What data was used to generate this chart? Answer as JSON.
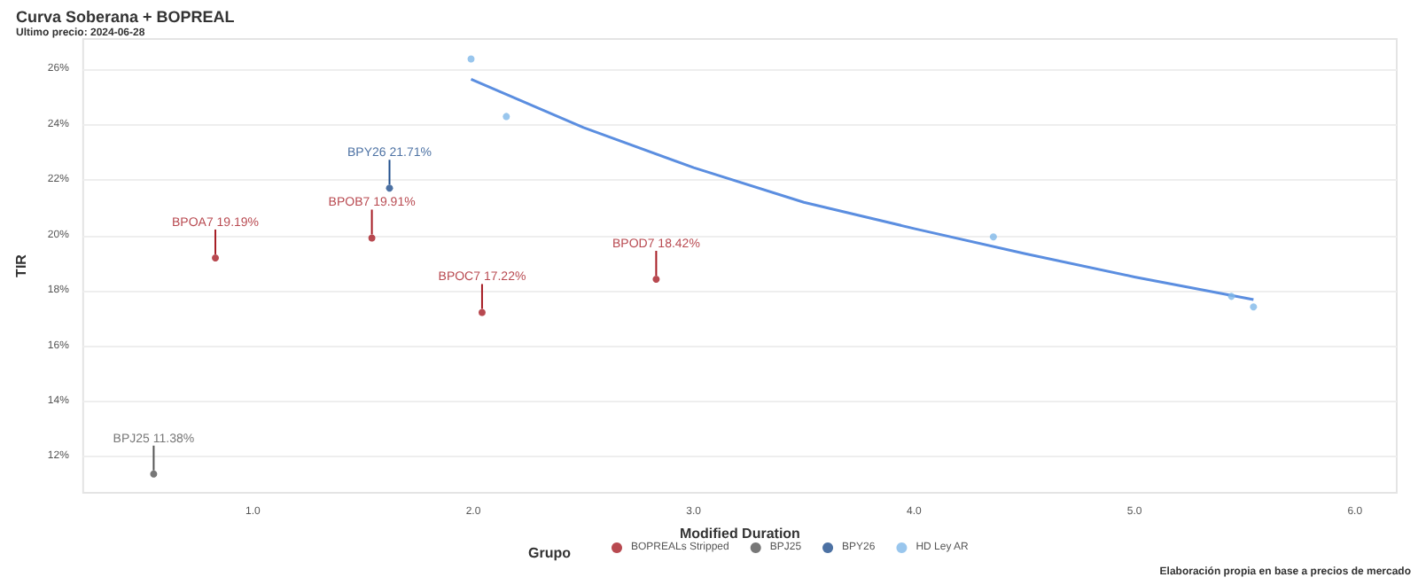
{
  "chart_data": {
    "type": "scatter",
    "title": "Curva Soberana + BOPREAL",
    "subtitle": "Ultimo precio: 2024-06-28",
    "xlabel": "Modified Duration",
    "ylabel": "TIR",
    "legend_title": "Grupo",
    "legend": "bottom",
    "grid": "y",
    "marker": "circle",
    "xlim": [
      0.23,
      6.19
    ],
    "xticks": [
      {
        "value": 1,
        "label": "1.0"
      },
      {
        "value": 2,
        "label": "2.0"
      },
      {
        "value": 3,
        "label": "3.0"
      },
      {
        "value": 4,
        "label": "4.0"
      },
      {
        "value": 5,
        "label": "5.0"
      },
      {
        "value": 6,
        "label": "6.0"
      }
    ],
    "ylim": [
      10.7,
      27.1
    ],
    "yticks": [
      {
        "value": 12,
        "label": "12%"
      },
      {
        "value": 14,
        "label": "14%"
      },
      {
        "value": 16,
        "label": "16%"
      },
      {
        "value": 18,
        "label": "18%"
      },
      {
        "value": 20,
        "label": "20%"
      },
      {
        "value": 22,
        "label": "22%"
      },
      {
        "value": 24,
        "label": "24%"
      },
      {
        "value": 26,
        "label": "26%"
      }
    ],
    "series": [
      {
        "name": "BOPREALs Stripped",
        "color": "#a61c24",
        "x": [
          0.83,
          1.54,
          2.04,
          2.83
        ],
        "values": [
          19.19,
          19.91,
          17.22,
          18.42
        ],
        "value_labels": [
          "BPOA7 19.19%",
          "BPOB7 19.91%",
          "BPOC7 17.22%",
          "BPOD7 18.42%"
        ]
      },
      {
        "name": "BPJ25",
        "color": "#555555",
        "x": [
          0.55
        ],
        "values": [
          11.38
        ],
        "value_labels": [
          "BPJ25 11.38%"
        ]
      },
      {
        "name": "BPY26",
        "color": "#1f4e8c",
        "x": [
          1.62
        ],
        "values": [
          21.71
        ],
        "value_labels": [
          "BPY26 21.71%"
        ]
      },
      {
        "name": "HD Ley AR",
        "color": "#7fb8e8",
        "x": [
          1.99,
          2.15,
          4.36,
          5.44,
          5.54
        ],
        "values": [
          26.38,
          24.3,
          19.95,
          17.8,
          17.42
        ]
      },
      {
        "type": "line",
        "marker": "none",
        "color": "#5b8ee0",
        "x": [
          1.99,
          2.5,
          3.0,
          3.5,
          4.0,
          4.5,
          5.0,
          5.54
        ],
        "values": [
          25.65,
          23.9,
          22.45,
          21.2,
          20.25,
          19.35,
          18.5,
          17.68
        ]
      }
    ],
    "annotations": [
      "Elaboración propia en base a precios de mercado"
    ]
  }
}
